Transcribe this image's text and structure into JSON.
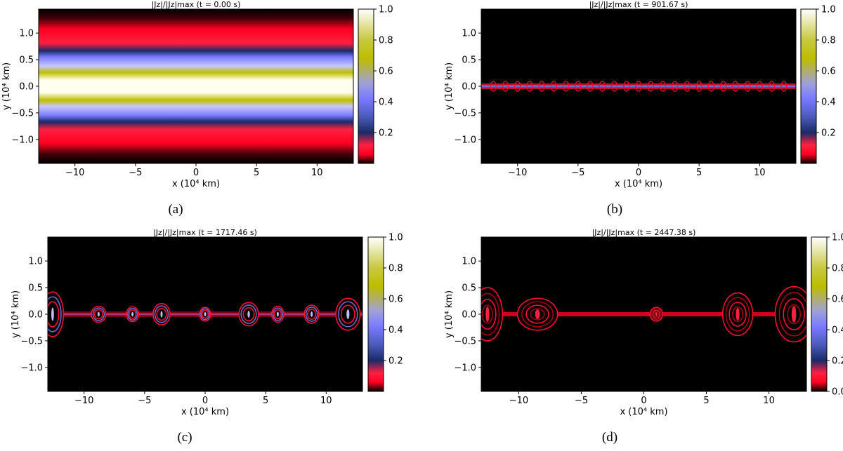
{
  "colors": {
    "background": "#000000",
    "colormap": [
      "#000000",
      "#ff0022",
      "#1a2a66",
      "#7a7aff",
      "#bdbd00",
      "#ffffff"
    ]
  },
  "chart_data": [
    {
      "type": "heatmap",
      "panel_label": "(a)",
      "title_prefix": "|J",
      "title_main": "|J",
      "title_text": "|Jz|/|Jz|max (t = 0.00 s)",
      "time_label": "(t = 0.00 s)",
      "xlabel": "x (10⁴ km)",
      "ylabel": "y (10⁴ km)",
      "xlim": [
        -13,
        13
      ],
      "ylim": [
        -1.45,
        1.45
      ],
      "xticks": [
        -10,
        -5,
        0,
        5,
        10
      ],
      "xtick_labels": [
        "−10",
        "−5",
        "0",
        "5",
        "10"
      ],
      "yticks": [
        -1.0,
        -0.5,
        0.0,
        0.5,
        1.0
      ],
      "ytick_labels": [
        "−1.0",
        "−0.5",
        "0.0",
        "0.5",
        "1.0"
      ],
      "colorbar_ticks": [
        0.2,
        0.4,
        0.6,
        0.8,
        1.0
      ],
      "colorbar_labels": [
        "0.2",
        "0.4",
        "0.6",
        "0.8",
        "1.0"
      ],
      "field": "uniform-sheet",
      "islands": []
    },
    {
      "type": "heatmap",
      "panel_label": "(b)",
      "title_text": "|Jz|/|Jz|max (t = 901.67 s)",
      "time_label": "(t = 901.67 s)",
      "xlabel": "x (10⁴ km)",
      "ylabel": "y (10⁴ km)",
      "xlim": [
        -13,
        13
      ],
      "ylim": [
        -1.45,
        1.45
      ],
      "xticks": [
        -10,
        -5,
        0,
        5,
        10
      ],
      "xtick_labels": [
        "−10",
        "−5",
        "0",
        "5",
        "10"
      ],
      "yticks": [
        -1.0,
        -0.5,
        0.0,
        0.5,
        1.0
      ],
      "ytick_labels": [
        "−1.0",
        "−0.5",
        "0.0",
        "0.5",
        "1.0"
      ],
      "colorbar_ticks": [
        0.2,
        0.4,
        0.6,
        0.8,
        1.0
      ],
      "colorbar_labels": [
        "0.2",
        "0.4",
        "0.6",
        "0.8",
        "1.0"
      ],
      "field": "thin-sheet",
      "islands": [
        -12,
        -11,
        -10,
        -9,
        -8,
        -7,
        -6,
        -5,
        -4,
        -3,
        -2,
        -1,
        0,
        1,
        2,
        3,
        4,
        5,
        6,
        7,
        8,
        9,
        10,
        11,
        12
      ]
    },
    {
      "type": "heatmap",
      "panel_label": "(c)",
      "title_text": "|Jz|/|Jz|max (t = 1717.46 s)",
      "time_label": "(t = 1717.46 s)",
      "xlabel": "x (10⁴ km)",
      "ylabel": "y (10⁴ km)",
      "xlim": [
        -13,
        13
      ],
      "ylim": [
        -1.45,
        1.45
      ],
      "xticks": [
        -10,
        -5,
        0,
        5,
        10
      ],
      "xtick_labels": [
        "−10",
        "−5",
        "0",
        "5",
        "10"
      ],
      "yticks": [
        -1.0,
        -0.5,
        0.0,
        0.5,
        1.0
      ],
      "ytick_labels": [
        "−1.0",
        "−0.5",
        "0.0",
        "0.5",
        "1.0"
      ],
      "colorbar_ticks": [
        0.2,
        0.4,
        0.6,
        0.8,
        1.0
      ],
      "colorbar_labels": [
        "0.2",
        "0.4",
        "0.6",
        "0.8",
        "1.0"
      ],
      "field": "islands",
      "islands": [
        {
          "x": -12.6,
          "w": 0.9,
          "h": 0.42
        },
        {
          "x": -8.8,
          "w": 0.6,
          "h": 0.15
        },
        {
          "x": -6.0,
          "w": 0.5,
          "h": 0.14
        },
        {
          "x": -3.6,
          "w": 0.7,
          "h": 0.2
        },
        {
          "x": 0.0,
          "w": 0.45,
          "h": 0.13
        },
        {
          "x": 3.6,
          "w": 0.8,
          "h": 0.22
        },
        {
          "x": 6.0,
          "w": 0.5,
          "h": 0.15
        },
        {
          "x": 8.8,
          "w": 0.6,
          "h": 0.17
        },
        {
          "x": 11.8,
          "w": 1.0,
          "h": 0.3
        }
      ]
    },
    {
      "type": "heatmap",
      "panel_label": "(d)",
      "title_text": "|Jz|/|Jz|max (t = 2447.38 s)",
      "time_label": "(t = 2447.38 s)",
      "xlabel": "x (10⁴ km)",
      "ylabel": "y (10⁴ km)",
      "xlim": [
        -13,
        13
      ],
      "ylim": [
        -1.45,
        1.45
      ],
      "xticks": [
        -10,
        -5,
        0,
        5,
        10
      ],
      "xtick_labels": [
        "−10",
        "−5",
        "0",
        "5",
        "10"
      ],
      "yticks": [
        -1.0,
        -0.5,
        0.0,
        0.5,
        1.0
      ],
      "ytick_labels": [
        "−1.0",
        "−0.5",
        "0.0",
        "0.5",
        "1.0"
      ],
      "colorbar_ticks": [
        0.0,
        0.2,
        0.4,
        0.6,
        0.8,
        1.0
      ],
      "colorbar_labels": [
        "0.0",
        "0.2",
        "0.4",
        "0.6",
        "0.8",
        "1.0"
      ],
      "field": "islands-late",
      "islands": [
        {
          "x": -12.5,
          "w": 1.2,
          "h": 0.5
        },
        {
          "x": -8.5,
          "w": 1.6,
          "h": 0.3
        },
        {
          "x": 1.0,
          "w": 0.5,
          "h": 0.13
        },
        {
          "x": 7.5,
          "w": 1.2,
          "h": 0.4
        },
        {
          "x": 12.0,
          "w": 1.5,
          "h": 0.52
        }
      ]
    }
  ]
}
